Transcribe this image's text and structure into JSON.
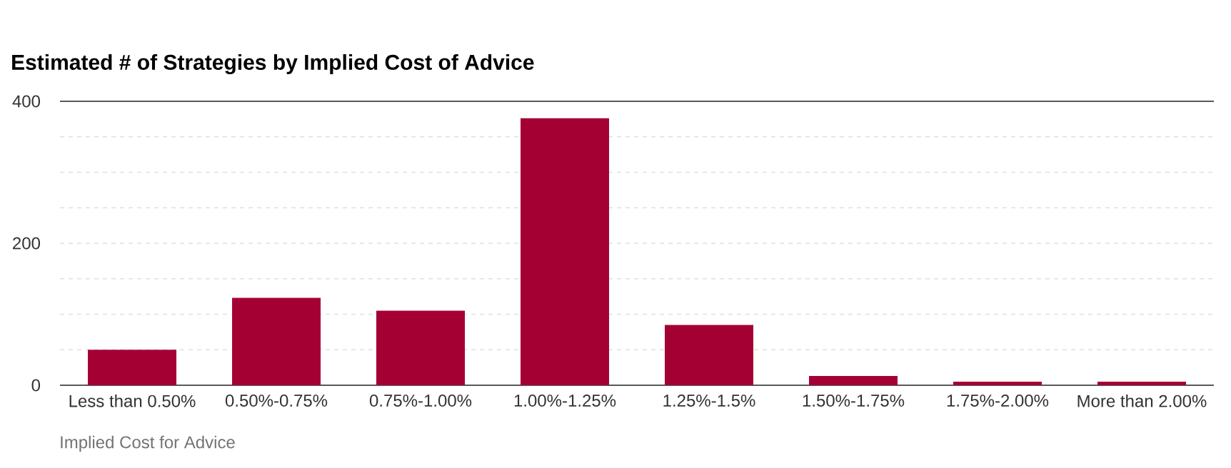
{
  "chart_data": {
    "type": "bar",
    "title": "Estimated # of Strategies by Implied Cost of Advice",
    "xlabel": "Implied Cost for Advice",
    "categories": [
      "Less than 0.50%",
      "0.50%-0.75%",
      "0.75%-1.00%",
      "1.00%-1.25%",
      "1.25%-1.5%",
      "1.50%-1.75%",
      "1.75%-2.00%",
      "More than 2.00%"
    ],
    "values": [
      50,
      123,
      105,
      376,
      85,
      13,
      5,
      5
    ],
    "color": "#a50034",
    "ylim": [
      0,
      400
    ],
    "yticks": [
      0,
      {
        "value": 50,
        "label": null
      },
      {
        "value": 100,
        "label": null
      },
      {
        "value": 150,
        "label": null
      },
      200,
      {
        "value": 250,
        "label": null
      },
      {
        "value": 300,
        "label": null
      },
      {
        "value": 350,
        "label": null
      },
      400
    ],
    "grid": "y"
  }
}
